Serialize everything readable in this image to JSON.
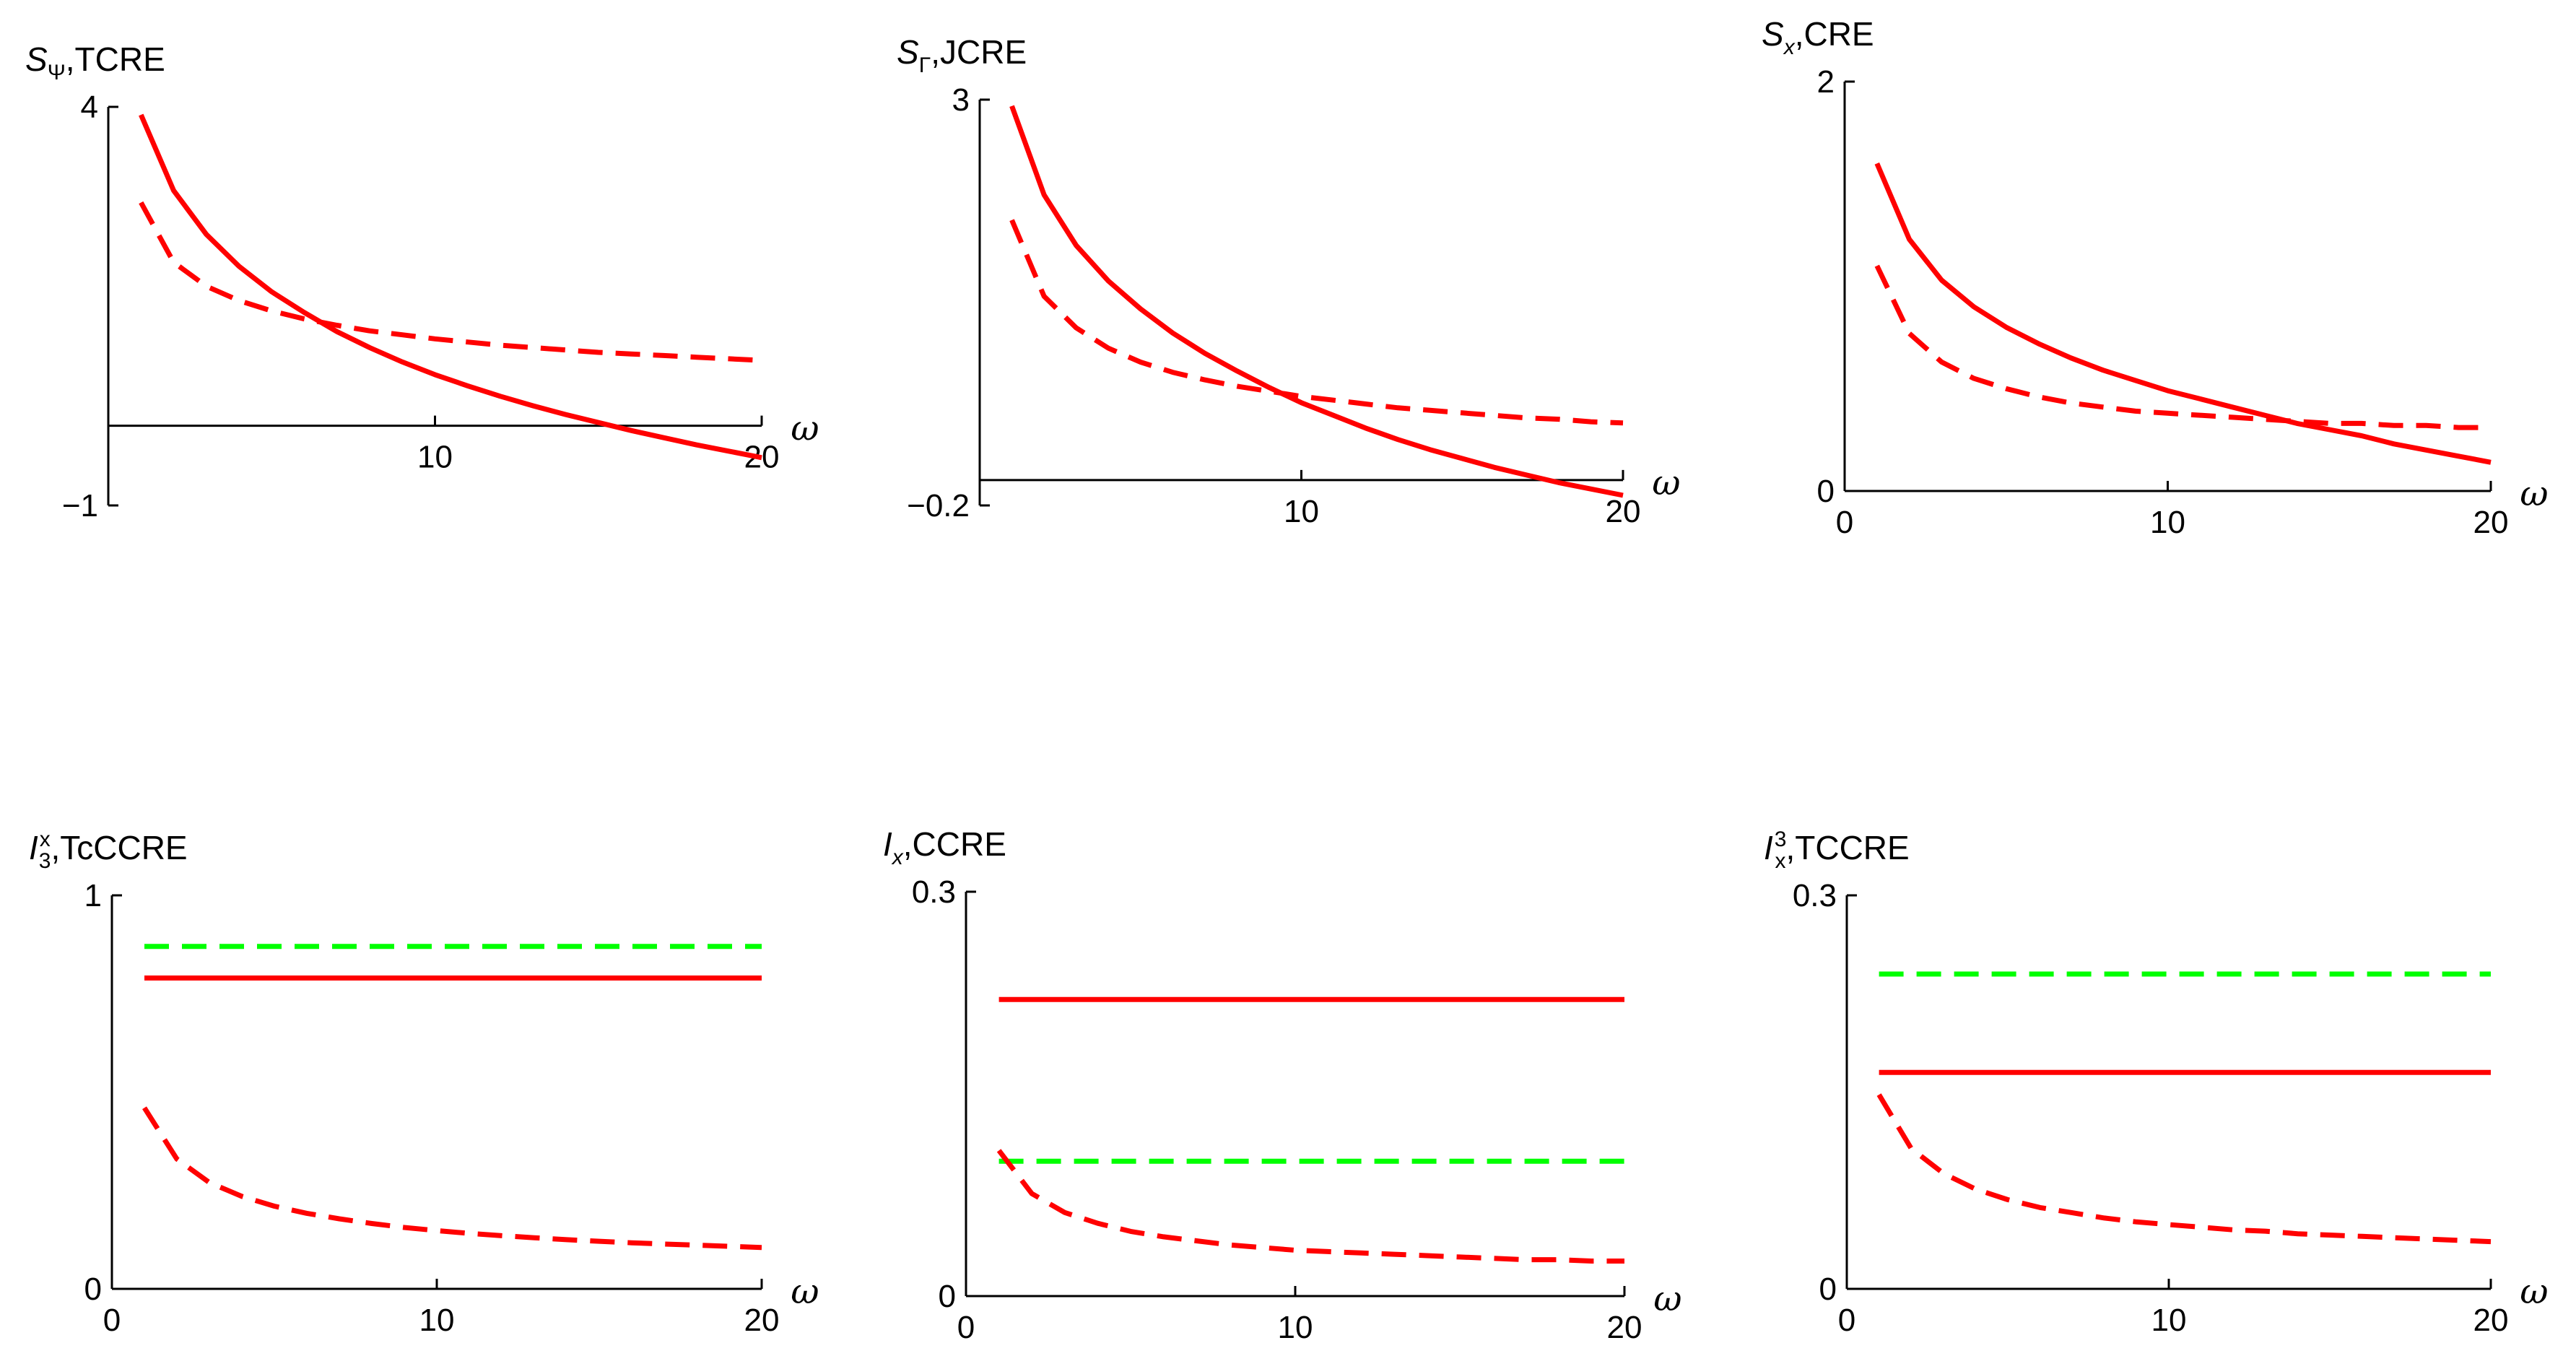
{
  "colors": {
    "red": "#ff0000",
    "green": "#00ff00",
    "axis": "#000000"
  },
  "chart_data": [
    {
      "type": "line",
      "title_main": "S",
      "title_sub": "Ψ",
      "title_sup": "",
      "title_rest": ",TCRE",
      "xlabel": "ω",
      "xlim": [
        0,
        20
      ],
      "ylim": [
        -1,
        4
      ],
      "xticks": [
        10,
        20
      ],
      "xtick_labels": [
        "10",
        "20"
      ],
      "yticks": [
        -1,
        4
      ],
      "ytick_labels": [
        "−1",
        "4"
      ],
      "zero_axis": true,
      "series": [
        {
          "name": "solid red",
          "color": "red",
          "style": "solid",
          "x": [
            1,
            2,
            3,
            4,
            5,
            6,
            7,
            8,
            9,
            10,
            11,
            12,
            13,
            14,
            15,
            16,
            17,
            18,
            19,
            20
          ],
          "values": [
            3.9,
            2.95,
            2.4,
            2.0,
            1.68,
            1.42,
            1.18,
            0.98,
            0.8,
            0.64,
            0.5,
            0.37,
            0.25,
            0.14,
            0.04,
            -0.06,
            -0.15,
            -0.24,
            -0.32,
            -0.4
          ]
        },
        {
          "name": "dashed red",
          "color": "red",
          "style": "dashed",
          "x": [
            1,
            2,
            3,
            4,
            5,
            6,
            7,
            8,
            9,
            10,
            11,
            12,
            13,
            14,
            15,
            16,
            17,
            18,
            19,
            20
          ],
          "values": [
            2.8,
            2.05,
            1.75,
            1.57,
            1.44,
            1.34,
            1.26,
            1.19,
            1.14,
            1.09,
            1.05,
            1.01,
            0.98,
            0.95,
            0.92,
            0.9,
            0.88,
            0.86,
            0.84,
            0.82
          ]
        }
      ]
    },
    {
      "type": "line",
      "title_main": "S",
      "title_sub": "Γ",
      "title_sup": "",
      "title_rest": ",JCRE",
      "xlabel": "ω",
      "xlim": [
        0,
        20
      ],
      "ylim": [
        -0.2,
        3
      ],
      "xticks": [
        10,
        20
      ],
      "xtick_labels": [
        "10",
        "20"
      ],
      "yticks": [
        -0.2,
        3
      ],
      "ytick_labels": [
        "−0.2",
        "3"
      ],
      "zero_axis": true,
      "series": [
        {
          "name": "solid red",
          "color": "red",
          "style": "solid",
          "x": [
            1,
            2,
            3,
            4,
            5,
            6,
            7,
            8,
            9,
            10,
            11,
            12,
            13,
            14,
            15,
            16,
            17,
            18,
            19,
            20
          ],
          "values": [
            2.95,
            2.25,
            1.85,
            1.57,
            1.35,
            1.16,
            1.0,
            0.86,
            0.73,
            0.61,
            0.51,
            0.41,
            0.32,
            0.24,
            0.17,
            0.1,
            0.04,
            -0.02,
            -0.07,
            -0.12
          ]
        },
        {
          "name": "dashed red",
          "color": "red",
          "style": "dashed",
          "x": [
            1,
            2,
            3,
            4,
            5,
            6,
            7,
            8,
            9,
            10,
            11,
            12,
            13,
            14,
            15,
            16,
            17,
            18,
            19,
            20
          ],
          "values": [
            2.05,
            1.45,
            1.2,
            1.04,
            0.93,
            0.85,
            0.79,
            0.74,
            0.7,
            0.66,
            0.63,
            0.6,
            0.57,
            0.55,
            0.53,
            0.51,
            0.49,
            0.48,
            0.46,
            0.45
          ]
        }
      ]
    },
    {
      "type": "line",
      "title_main": "S",
      "title_sub": "x",
      "title_sup": "",
      "title_rest": ",CRE",
      "xlabel": "ω",
      "xlim": [
        0,
        20
      ],
      "ylim": [
        0,
        2
      ],
      "xticks": [
        0,
        10,
        20
      ],
      "xtick_labels": [
        "0",
        "10",
        "20"
      ],
      "yticks": [
        0,
        2
      ],
      "ytick_labels": [
        "0",
        "2"
      ],
      "zero_axis": false,
      "series": [
        {
          "name": "solid red",
          "color": "red",
          "style": "solid",
          "x": [
            1,
            2,
            3,
            4,
            5,
            6,
            7,
            8,
            9,
            10,
            11,
            12,
            13,
            14,
            15,
            16,
            17,
            18,
            19,
            20
          ],
          "values": [
            1.6,
            1.23,
            1.03,
            0.9,
            0.8,
            0.72,
            0.65,
            0.59,
            0.54,
            0.49,
            0.45,
            0.41,
            0.37,
            0.33,
            0.3,
            0.27,
            0.23,
            0.2,
            0.17,
            0.14
          ]
        },
        {
          "name": "dashed red",
          "color": "red",
          "style": "dashed",
          "x": [
            1,
            2,
            3,
            4,
            5,
            6,
            7,
            8,
            9,
            10,
            11,
            12,
            13,
            14,
            15,
            16,
            17,
            18,
            19,
            20
          ],
          "values": [
            1.1,
            0.77,
            0.63,
            0.55,
            0.5,
            0.46,
            0.43,
            0.41,
            0.39,
            0.38,
            0.37,
            0.36,
            0.35,
            0.34,
            0.33,
            0.33,
            0.32,
            0.32,
            0.31,
            0.31
          ]
        }
      ]
    },
    {
      "type": "line",
      "title_main": "I",
      "title_sub": "3",
      "title_sup": "x",
      "title_rest": ",TcCCRE",
      "xlabel": "ω",
      "xlim": [
        0,
        20
      ],
      "ylim": [
        0,
        1
      ],
      "xticks": [
        0,
        10,
        20
      ],
      "xtick_labels": [
        "0",
        "10",
        "20"
      ],
      "yticks": [
        0,
        1
      ],
      "ytick_labels": [
        "0",
        "1"
      ],
      "zero_axis": false,
      "series": [
        {
          "name": "dashed green",
          "color": "green",
          "style": "dashed",
          "x": [
            1,
            20
          ],
          "values": [
            0.87,
            0.87
          ]
        },
        {
          "name": "solid red",
          "color": "red",
          "style": "solid",
          "x": [
            1,
            20
          ],
          "values": [
            0.79,
            0.79
          ]
        },
        {
          "name": "dashed red",
          "color": "red",
          "style": "dashed",
          "x": [
            1,
            2,
            3,
            4,
            5,
            6,
            7,
            8,
            9,
            10,
            11,
            12,
            13,
            14,
            15,
            16,
            17,
            18,
            19,
            20
          ],
          "values": [
            0.46,
            0.33,
            0.27,
            0.235,
            0.21,
            0.192,
            0.178,
            0.166,
            0.156,
            0.148,
            0.141,
            0.135,
            0.13,
            0.125,
            0.121,
            0.117,
            0.114,
            0.111,
            0.108,
            0.105
          ]
        }
      ]
    },
    {
      "type": "line",
      "title_main": "I",
      "title_sub": "x",
      "title_sup": "",
      "title_rest": ",CCRE",
      "xlabel": "ω",
      "xlim": [
        0,
        20
      ],
      "ylim": [
        0,
        0.3
      ],
      "xticks": [
        0,
        10,
        20
      ],
      "xtick_labels": [
        "0",
        "10",
        "20"
      ],
      "yticks": [
        0,
        0.3
      ],
      "ytick_labels": [
        "0",
        "0.3"
      ],
      "zero_axis": false,
      "series": [
        {
          "name": "solid red",
          "color": "red",
          "style": "solid",
          "x": [
            1,
            20
          ],
          "values": [
            0.22,
            0.22
          ]
        },
        {
          "name": "dashed green",
          "color": "green",
          "style": "dashed",
          "x": [
            1,
            20
          ],
          "values": [
            0.1,
            0.1
          ]
        },
        {
          "name": "dashed red",
          "color": "red",
          "style": "dashed",
          "x": [
            1,
            2,
            3,
            4,
            5,
            6,
            7,
            8,
            9,
            10,
            11,
            12,
            13,
            14,
            15,
            16,
            17,
            18,
            19,
            20
          ],
          "values": [
            0.108,
            0.076,
            0.062,
            0.054,
            0.048,
            0.044,
            0.041,
            0.038,
            0.036,
            0.034,
            0.033,
            0.032,
            0.031,
            0.03,
            0.029,
            0.028,
            0.027,
            0.027,
            0.026,
            0.026
          ]
        }
      ]
    },
    {
      "type": "line",
      "title_main": "I",
      "title_sub": "x",
      "title_sup": "3",
      "title_rest": ",TCCRE",
      "xlabel": "ω",
      "xlim": [
        0,
        20
      ],
      "ylim": [
        0,
        0.3
      ],
      "xticks": [
        0,
        10,
        20
      ],
      "xtick_labels": [
        "0",
        "10",
        "20"
      ],
      "yticks": [
        0,
        0.3
      ],
      "ytick_labels": [
        "0",
        "0.3"
      ],
      "zero_axis": false,
      "series": [
        {
          "name": "dashed green",
          "color": "green",
          "style": "dashed",
          "x": [
            1,
            20
          ],
          "values": [
            0.24,
            0.24
          ]
        },
        {
          "name": "solid red",
          "color": "red",
          "style": "solid",
          "x": [
            1,
            20
          ],
          "values": [
            0.165,
            0.165
          ]
        },
        {
          "name": "dashed red",
          "color": "red",
          "style": "dashed",
          "x": [
            1,
            2,
            3,
            4,
            5,
            6,
            7,
            8,
            9,
            10,
            11,
            12,
            13,
            14,
            15,
            16,
            17,
            18,
            19,
            20
          ],
          "values": [
            0.148,
            0.107,
            0.088,
            0.076,
            0.068,
            0.062,
            0.058,
            0.054,
            0.051,
            0.049,
            0.047,
            0.045,
            0.044,
            0.042,
            0.041,
            0.04,
            0.039,
            0.038,
            0.037,
            0.036
          ]
        }
      ]
    }
  ]
}
